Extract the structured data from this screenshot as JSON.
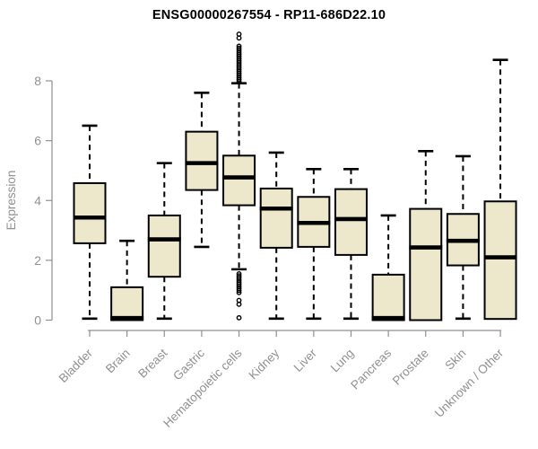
{
  "chart_data": {
    "type": "boxplot",
    "title": "ENSG00000267554 - RP11-686D22.10",
    "ylabel": "Expression",
    "xlabel": "",
    "ylim": [
      0,
      9.7
    ],
    "yticks": [
      0,
      2,
      4,
      6,
      8
    ],
    "grid": false,
    "legend": false,
    "categories": [
      "Bladder",
      "Brain",
      "Breast",
      "Gastric",
      "Hematopoietic cells",
      "Kidney",
      "Liver",
      "Lung",
      "Pancreas",
      "Prostate",
      "Skin",
      "Unknown / Other"
    ],
    "series": [
      {
        "name": "Bladder",
        "whisker_low": 0.05,
        "q1": 2.57,
        "median": 3.43,
        "q3": 4.58,
        "whisker_high": 6.5,
        "outliers": []
      },
      {
        "name": "Brain",
        "whisker_low": 0,
        "q1": 0,
        "median": 0.07,
        "q3": 1.1,
        "whisker_high": 2.65,
        "outliers": []
      },
      {
        "name": "Breast",
        "whisker_low": 0.05,
        "q1": 1.45,
        "median": 2.7,
        "q3": 3.5,
        "whisker_high": 5.25,
        "outliers": []
      },
      {
        "name": "Gastric",
        "whisker_low": 2.45,
        "q1": 4.35,
        "median": 5.25,
        "q3": 6.3,
        "whisker_high": 7.6,
        "outliers": []
      },
      {
        "name": "Hematopoietic cells",
        "whisker_low": 1.7,
        "q1": 3.84,
        "median": 4.77,
        "q3": 5.5,
        "whisker_high": 7.92,
        "outliers": [
          9.56,
          9.43,
          9.16,
          9.09,
          9.02,
          8.95,
          8.88,
          8.81,
          8.74,
          8.67,
          8.6,
          8.53,
          8.46,
          8.39,
          8.32,
          8.25,
          8.18,
          8.11,
          8.04,
          7.97,
          1.55,
          1.48,
          1.41,
          1.34,
          1.27,
          1.2,
          1.13,
          1.06,
          0.99,
          0.92,
          0.66,
          0.53,
          0.08
        ]
      },
      {
        "name": "Kidney",
        "whisker_low": 0.05,
        "q1": 2.42,
        "median": 3.73,
        "q3": 4.4,
        "whisker_high": 5.6,
        "outliers": []
      },
      {
        "name": "Liver",
        "whisker_low": 0.05,
        "q1": 2.45,
        "median": 3.25,
        "q3": 4.12,
        "whisker_high": 5.05,
        "outliers": []
      },
      {
        "name": "Lung",
        "whisker_low": 0.05,
        "q1": 2.18,
        "median": 3.38,
        "q3": 4.38,
        "whisker_high": 5.05,
        "outliers": []
      },
      {
        "name": "Pancreas",
        "whisker_low": 0,
        "q1": 0,
        "median": 0.07,
        "q3": 1.52,
        "whisker_high": 3.5,
        "outliers": []
      },
      {
        "name": "Prostate",
        "whisker_low": 0,
        "q1": 0,
        "median": 2.43,
        "q3": 3.72,
        "whisker_high": 5.65,
        "outliers": []
      },
      {
        "name": "Skin",
        "whisker_low": 0.05,
        "q1": 1.83,
        "median": 2.65,
        "q3": 3.55,
        "whisker_high": 5.48,
        "outliers": []
      },
      {
        "name": "Unknown / Other",
        "whisker_low": 0.04,
        "q1": 0.04,
        "median": 2.1,
        "q3": 3.97,
        "whisker_high": 8.7,
        "outliers": []
      }
    ]
  },
  "colors": {
    "box_fill": "#EDE8CB",
    "box_stroke": "#000000",
    "median": "#000000",
    "axis": "#909090",
    "title_text": "#000000",
    "background": "#FFFFFF"
  }
}
